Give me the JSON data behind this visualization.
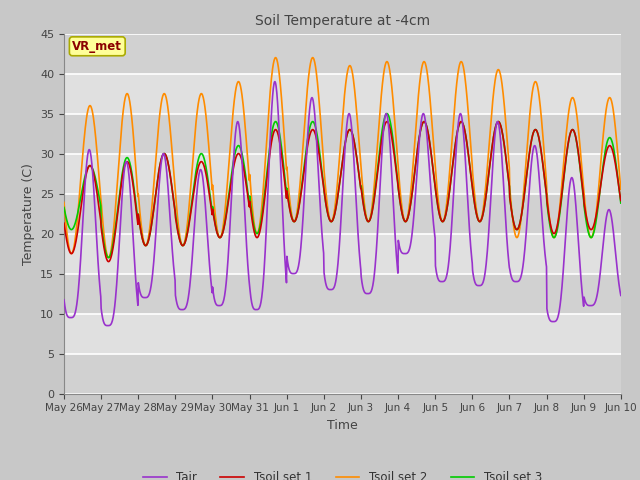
{
  "title": "Soil Temperature at -4cm",
  "xlabel": "Time",
  "ylabel": "Temperature (C)",
  "ylim": [
    0,
    45
  ],
  "yticks": [
    0,
    5,
    10,
    15,
    20,
    25,
    30,
    35,
    40,
    45
  ],
  "colors": {
    "Tair": "#9932CC",
    "Tsoil1": "#CC0000",
    "Tsoil2": "#FF8C00",
    "Tsoil3": "#00CC00"
  },
  "legend_labels": [
    "Tair",
    "Tsoil set 1",
    "Tsoil set 2",
    "Tsoil set 3"
  ],
  "annotation_text": "VR_met",
  "annotation_color": "#8B0000",
  "annotation_bg": "#FFFF99",
  "fig_facecolor": "#C8C8C8",
  "axes_facecolor": "#E0E0E0",
  "band_color_dark": "#C8C8C8",
  "n_days": 15,
  "xtick_labels": [
    "May 26",
    "May 27",
    "May 28",
    "May 29",
    "May 30",
    "May 31",
    "Jun 1",
    "Jun 2",
    "Jun 3",
    "Jun 4",
    "Jun 5",
    "Jun 6",
    "Jun 7",
    "Jun 8",
    "Jun 9",
    "Jun 10"
  ],
  "points_per_day": 96,
  "tair_min_envelope": [
    9.5,
    8.5,
    12,
    10.5,
    11,
    10.5,
    15,
    13,
    12.5,
    17.5,
    14,
    13.5,
    14,
    9,
    11
  ],
  "tair_max_envelope": [
    30.5,
    29,
    30,
    28,
    34,
    39,
    37,
    35,
    35,
    35,
    35,
    34,
    31,
    27,
    23
  ],
  "tsoil1_min_envelope": [
    17.5,
    16.5,
    18.5,
    18.5,
    19.5,
    19.5,
    21.5,
    21.5,
    21.5,
    21.5,
    21.5,
    21.5,
    20.5,
    20,
    20.5
  ],
  "tsoil1_max_envelope": [
    28.5,
    29,
    30,
    29,
    30,
    33,
    33,
    33,
    34,
    34,
    34,
    34,
    33,
    33,
    31
  ],
  "tsoil2_min_envelope": [
    17.5,
    17,
    18.5,
    18.5,
    19.5,
    20,
    21.5,
    21.5,
    21.5,
    21.5,
    21.5,
    21.5,
    19.5,
    19.5,
    19.5
  ],
  "tsoil2_max_envelope": [
    36,
    37.5,
    37.5,
    37.5,
    39,
    42,
    42,
    41,
    41.5,
    41.5,
    41.5,
    40.5,
    39,
    37,
    37
  ],
  "tsoil3_min_envelope": [
    20.5,
    17,
    18.5,
    18.5,
    19.5,
    20,
    21.5,
    21.5,
    21.5,
    21.5,
    21.5,
    21.5,
    20.5,
    19.5,
    19.5
  ],
  "tsoil3_max_envelope": [
    28.5,
    29.5,
    30,
    30,
    31,
    34,
    34,
    33,
    35,
    34,
    34,
    34,
    33,
    33,
    32
  ],
  "tair_sharpness": 1.8,
  "linewidth": 1.2
}
